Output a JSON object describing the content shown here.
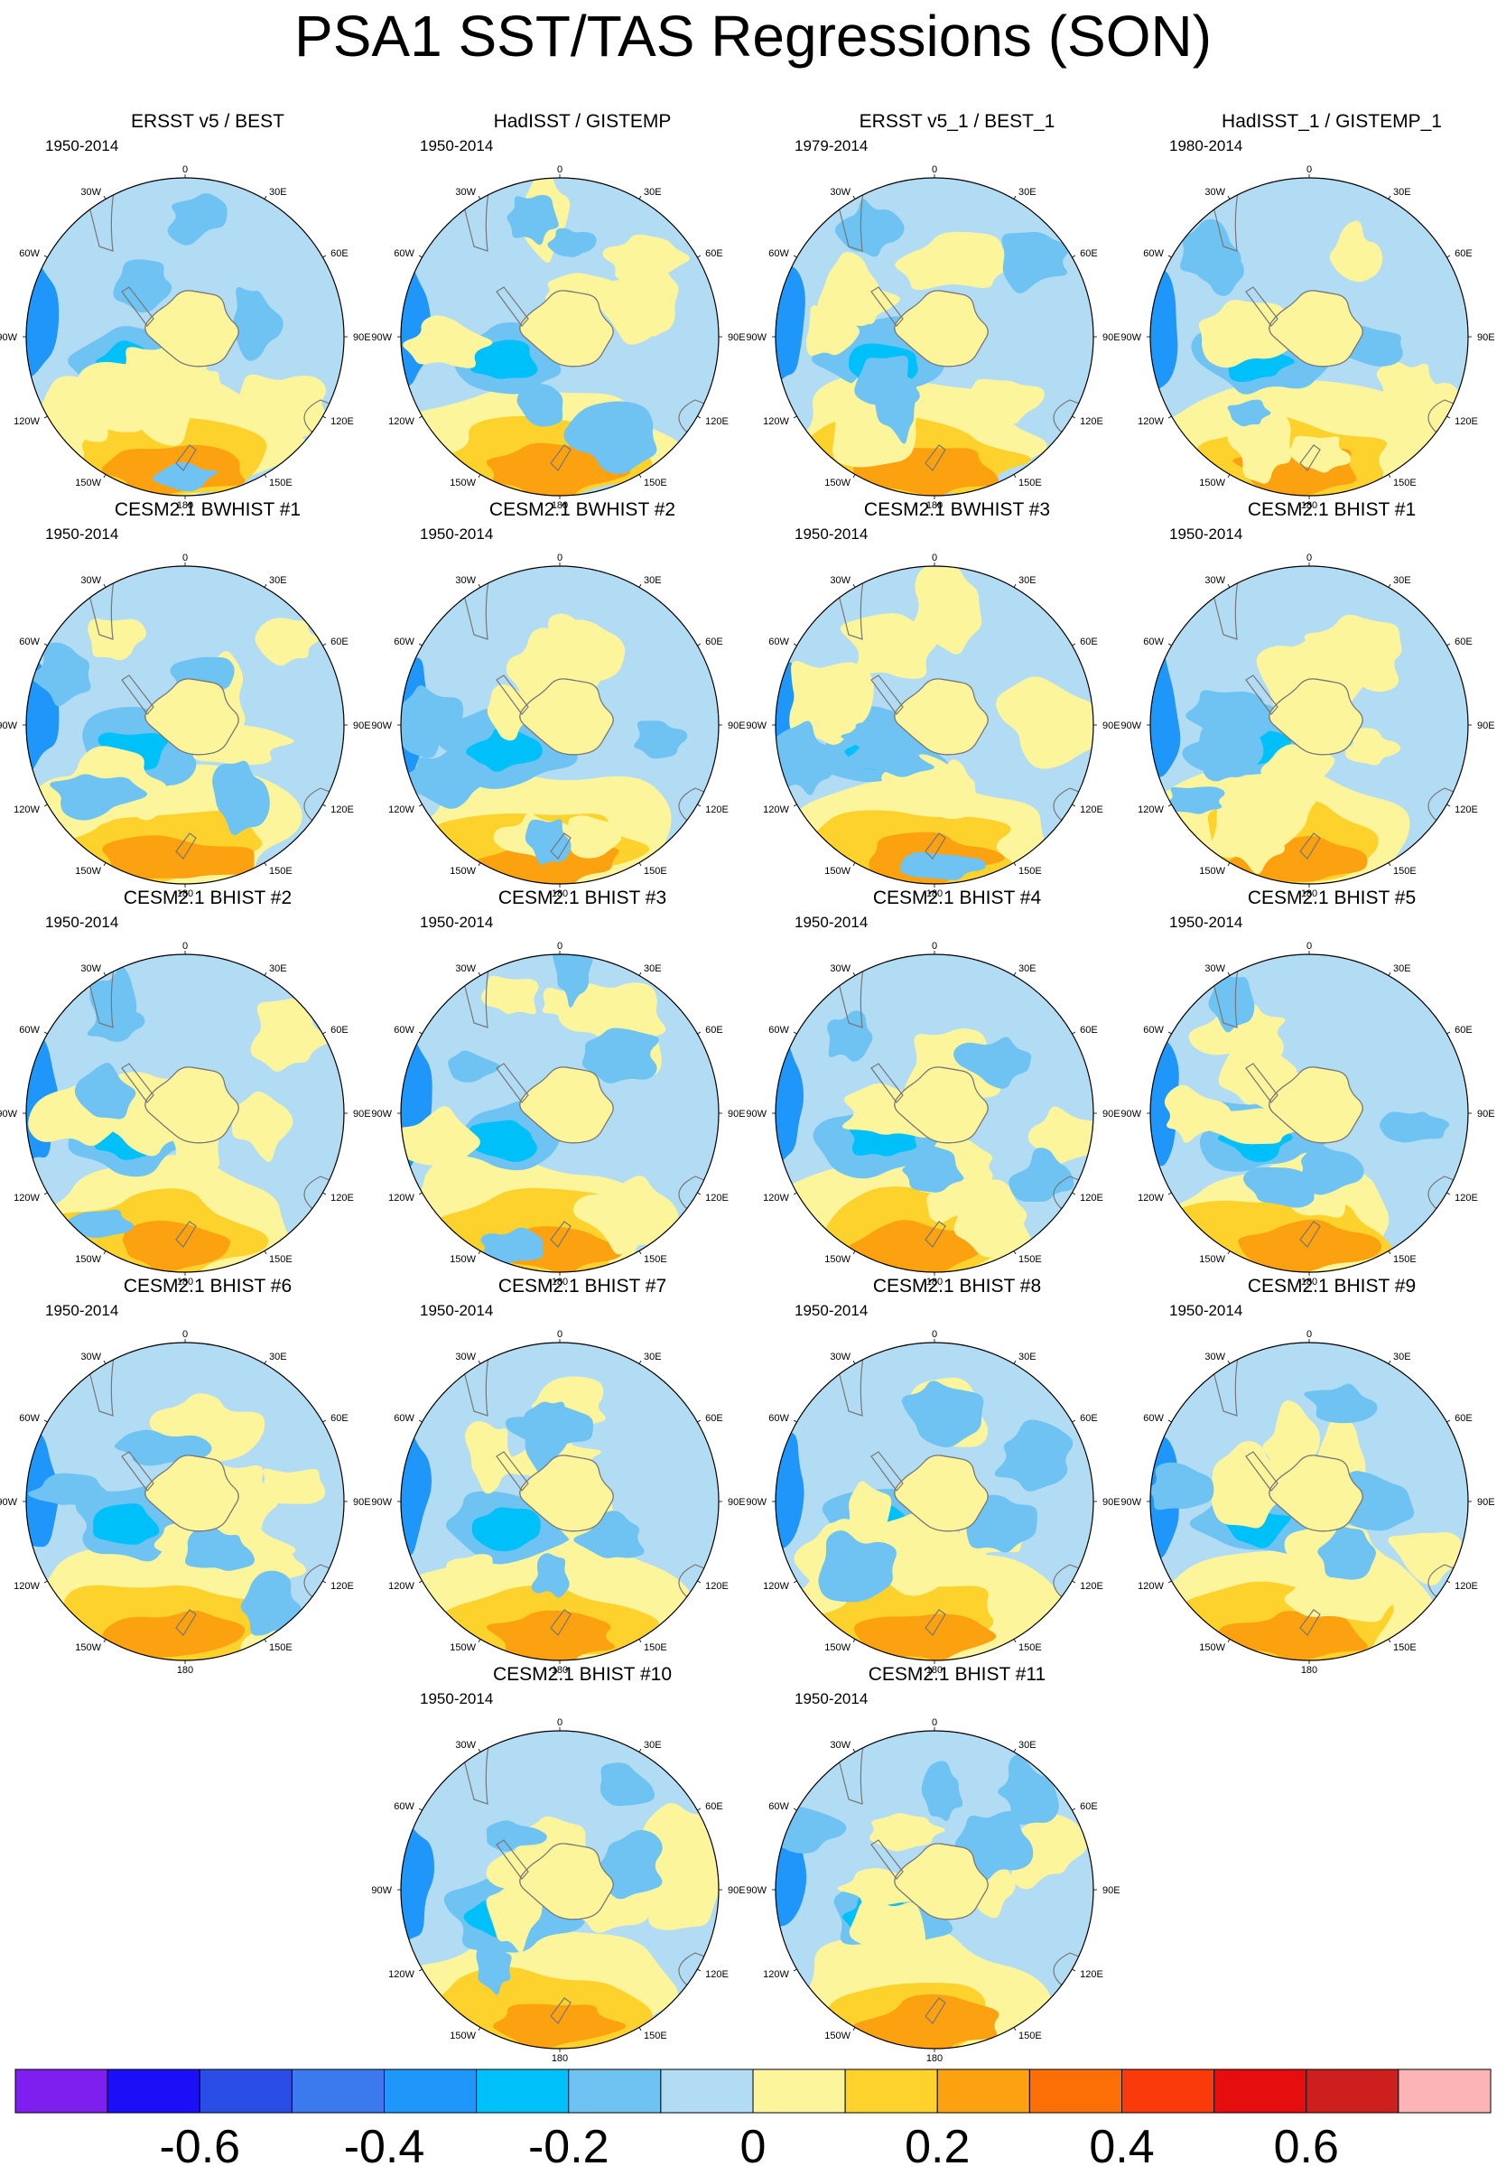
{
  "title": "PSA1 SST/TAS Regressions (SON)",
  "lon_labels": [
    "0",
    "30E",
    "60E",
    "90E",
    "120E",
    "150E",
    "180",
    "150W",
    "120W",
    "90W",
    "60W",
    "30W"
  ],
  "panels": [
    {
      "id": "p1",
      "title": "ERSST v5 / BEST",
      "period": "1950-2014"
    },
    {
      "id": "p2",
      "title": "HadISST / GISTEMP",
      "period": "1950-2014"
    },
    {
      "id": "p3",
      "title": "ERSST v5_1 / BEST_1",
      "period": "1979-2014"
    },
    {
      "id": "p4",
      "title": "HadISST_1 / GISTEMP_1",
      "period": "1980-2014"
    },
    {
      "id": "p5",
      "title": "CESM2.1 BWHIST #1",
      "period": "1950-2014"
    },
    {
      "id": "p6",
      "title": "CESM2.1 BWHIST #2",
      "period": "1950-2014"
    },
    {
      "id": "p7",
      "title": "CESM2.1 BWHIST #3",
      "period": "1950-2014"
    },
    {
      "id": "p8",
      "title": "CESM2.1 BHIST #1",
      "period": "1950-2014"
    },
    {
      "id": "p9",
      "title": "CESM2.1 BHIST #2",
      "period": "1950-2014"
    },
    {
      "id": "p10",
      "title": "CESM2.1 BHIST #3",
      "period": "1950-2014"
    },
    {
      "id": "p11",
      "title": "CESM2.1 BHIST #4",
      "period": "1950-2014"
    },
    {
      "id": "p12",
      "title": "CESM2.1 BHIST #5",
      "period": "1950-2014"
    },
    {
      "id": "p13",
      "title": "CESM2.1 BHIST #6",
      "period": "1950-2014"
    },
    {
      "id": "p14",
      "title": "CESM2.1 BHIST #7",
      "period": "1950-2014"
    },
    {
      "id": "p15",
      "title": "CESM2.1 BHIST #8",
      "period": "1950-2014"
    },
    {
      "id": "p16",
      "title": "CESM2.1 BHIST #9",
      "period": "1950-2014"
    },
    {
      "id": "p17",
      "title": "CESM2.1 BHIST #10",
      "period": "1950-2014"
    },
    {
      "id": "p18",
      "title": "CESM2.1 BHIST #11",
      "period": "1950-2014"
    }
  ],
  "colorbar": {
    "colors": [
      "#7e1fef",
      "#1a0ff7",
      "#2a4de8",
      "#3a7aee",
      "#1f97fa",
      "#00c0fa",
      "#6ec3f2",
      "#b2dcf3",
      "#fdf59b",
      "#fdd22c",
      "#fca10f",
      "#fb6f06",
      "#fa3a0a",
      "#e50d0d",
      "#ce1f1f",
      "#fdb4b6"
    ],
    "labels": [
      "-0.6",
      "-0.4",
      "-0.2",
      "0",
      "0.2",
      "0.4",
      "0.6"
    ]
  }
}
